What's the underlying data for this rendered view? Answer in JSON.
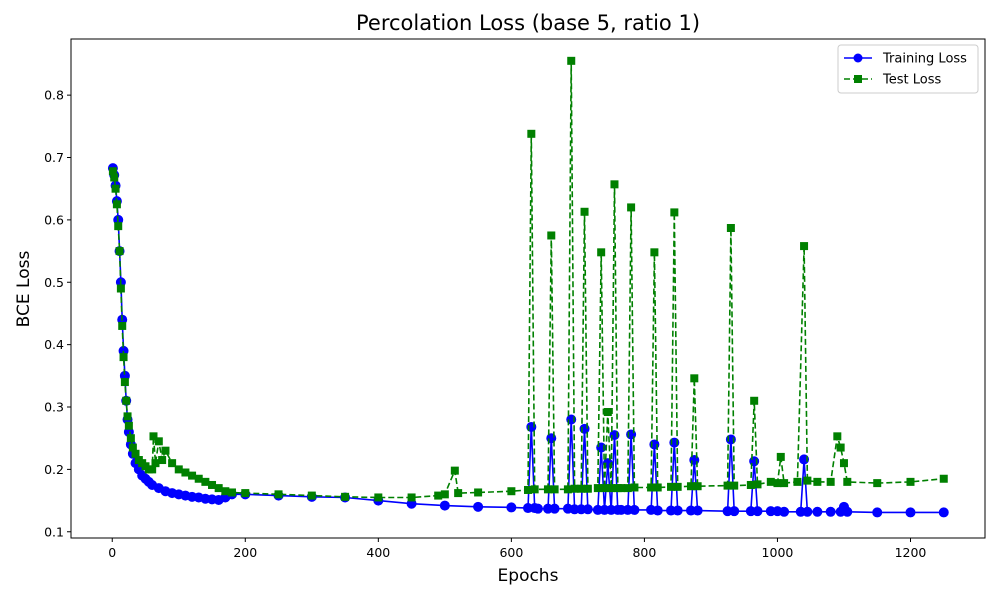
{
  "chart_data": {
    "type": "line",
    "title": "Percolation Loss (base 5, ratio 1)",
    "xlabel": "Epochs",
    "ylabel": "BCE Loss",
    "xlim": [
      -62,
      1312
    ],
    "ylim": [
      0.09,
      0.89
    ],
    "xticks": [
      0,
      200,
      400,
      600,
      800,
      1000,
      1200
    ],
    "yticks": [
      0.1,
      0.2,
      0.3,
      0.4,
      0.5,
      0.6,
      0.7,
      0.8
    ],
    "grid": false,
    "legend_position": "upper right",
    "series": [
      {
        "name": "Training Loss",
        "color": "#0000ff",
        "marker": "circle",
        "linestyle": "solid",
        "x": [
          1,
          3,
          5,
          7,
          9,
          11,
          13,
          15,
          17,
          19,
          21,
          23,
          25,
          28,
          31,
          35,
          40,
          45,
          50,
          55,
          60,
          70,
          80,
          90,
          100,
          110,
          120,
          130,
          140,
          150,
          160,
          170,
          180,
          200,
          250,
          300,
          350,
          400,
          450,
          500,
          550,
          600,
          625,
          630,
          635,
          640,
          655,
          660,
          665,
          685,
          690,
          695,
          705,
          710,
          715,
          730,
          735,
          740,
          745,
          750,
          755,
          760,
          765,
          775,
          780,
          785,
          810,
          815,
          820,
          840,
          845,
          850,
          870,
          875,
          880,
          925,
          930,
          935,
          960,
          965,
          970,
          990,
          1000,
          1010,
          1035,
          1040,
          1045,
          1060,
          1080,
          1095,
          1100,
          1105,
          1150,
          1200,
          1250
        ],
        "y": [
          0.683,
          0.672,
          0.655,
          0.63,
          0.6,
          0.55,
          0.5,
          0.44,
          0.39,
          0.35,
          0.31,
          0.28,
          0.26,
          0.24,
          0.225,
          0.21,
          0.2,
          0.19,
          0.185,
          0.18,
          0.175,
          0.17,
          0.165,
          0.162,
          0.16,
          0.158,
          0.156,
          0.155,
          0.153,
          0.152,
          0.151,
          0.155,
          0.16,
          0.16,
          0.158,
          0.156,
          0.155,
          0.15,
          0.145,
          0.142,
          0.14,
          0.139,
          0.138,
          0.268,
          0.138,
          0.137,
          0.137,
          0.25,
          0.137,
          0.137,
          0.28,
          0.136,
          0.136,
          0.265,
          0.136,
          0.135,
          0.235,
          0.135,
          0.21,
          0.135,
          0.255,
          0.135,
          0.135,
          0.135,
          0.256,
          0.135,
          0.135,
          0.24,
          0.134,
          0.134,
          0.243,
          0.134,
          0.134,
          0.215,
          0.134,
          0.133,
          0.248,
          0.133,
          0.133,
          0.213,
          0.133,
          0.133,
          0.133,
          0.132,
          0.132,
          0.216,
          0.132,
          0.132,
          0.132,
          0.132,
          0.14,
          0.132,
          0.131,
          0.131,
          0.131
        ]
      },
      {
        "name": "Test Loss",
        "color": "#008000",
        "marker": "square",
        "linestyle": "dashed",
        "x": [
          1,
          3,
          5,
          7,
          9,
          11,
          13,
          15,
          17,
          19,
          21,
          23,
          25,
          28,
          31,
          35,
          40,
          45,
          50,
          55,
          60,
          62,
          65,
          70,
          75,
          80,
          90,
          100,
          110,
          120,
          130,
          140,
          150,
          160,
          170,
          180,
          200,
          250,
          300,
          350,
          400,
          450,
          490,
          500,
          515,
          520,
          550,
          600,
          625,
          630,
          635,
          655,
          660,
          665,
          685,
          690,
          695,
          705,
          710,
          715,
          730,
          735,
          740,
          745,
          750,
          755,
          760,
          765,
          775,
          780,
          785,
          810,
          815,
          820,
          840,
          845,
          850,
          870,
          875,
          880,
          925,
          930,
          935,
          960,
          965,
          970,
          990,
          1000,
          1005,
          1010,
          1030,
          1040,
          1045,
          1060,
          1080,
          1090,
          1095,
          1100,
          1105,
          1150,
          1200,
          1250
        ],
        "y": [
          0.678,
          0.668,
          0.65,
          0.625,
          0.59,
          0.55,
          0.49,
          0.43,
          0.38,
          0.34,
          0.31,
          0.285,
          0.27,
          0.25,
          0.235,
          0.225,
          0.215,
          0.21,
          0.205,
          0.2,
          0.2,
          0.253,
          0.21,
          0.245,
          0.215,
          0.23,
          0.21,
          0.2,
          0.195,
          0.19,
          0.185,
          0.18,
          0.175,
          0.17,
          0.165,
          0.163,
          0.162,
          0.16,
          0.158,
          0.156,
          0.155,
          0.155,
          0.158,
          0.16,
          0.198,
          0.162,
          0.163,
          0.165,
          0.167,
          0.738,
          0.168,
          0.168,
          0.575,
          0.168,
          0.168,
          0.855,
          0.169,
          0.169,
          0.613,
          0.169,
          0.17,
          0.548,
          0.17,
          0.292,
          0.17,
          0.657,
          0.17,
          0.17,
          0.17,
          0.62,
          0.171,
          0.171,
          0.548,
          0.171,
          0.172,
          0.612,
          0.172,
          0.173,
          0.346,
          0.173,
          0.174,
          0.587,
          0.174,
          0.175,
          0.31,
          0.176,
          0.18,
          0.178,
          0.22,
          0.178,
          0.18,
          0.558,
          0.182,
          0.18,
          0.18,
          0.253,
          0.235,
          0.21,
          0.18,
          0.178,
          0.18,
          0.185
        ]
      }
    ]
  }
}
